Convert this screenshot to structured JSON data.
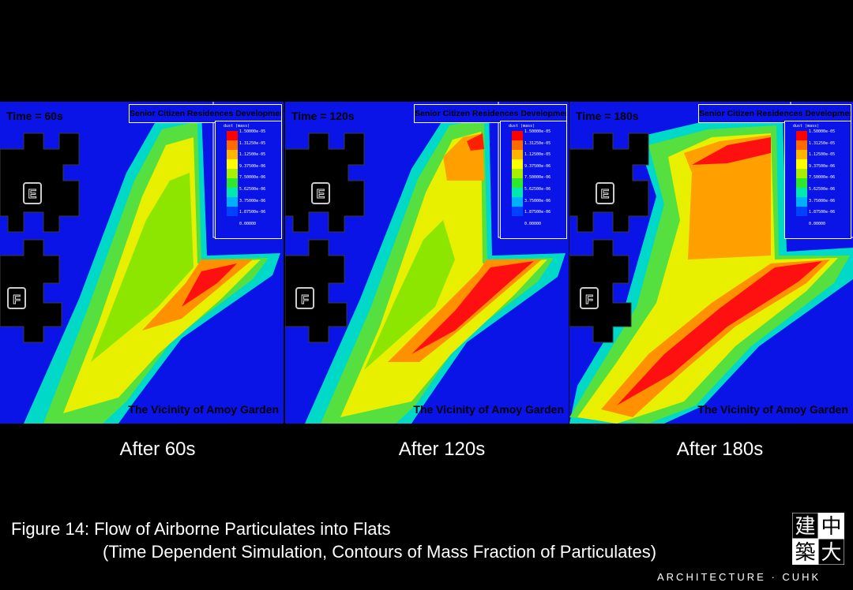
{
  "legend": {
    "title": "dust (mass)",
    "ticks": [
      "1.50000e-05",
      "1.31250e-05",
      "1.12500e-05",
      "9.37500e-06",
      "7.50000e-06",
      "5.62500e-06",
      "3.75000e-06",
      "1.87500e-06",
      "0.00000"
    ],
    "colors": [
      "#ff0000",
      "#ff6a00",
      "#ffb400",
      "#ffff00",
      "#a8f000",
      "#2ee82e",
      "#00e8b0",
      "#00b0ff",
      "#0040ff",
      "#0a14e6"
    ]
  },
  "panels": [
    {
      "time_label": "Time = 60s",
      "title": "Senior Citizen Residences Development",
      "vicinity": "The Vicinity of Amoy Garden",
      "caption": "After 60s",
      "block_e": "E",
      "block_f": "F"
    },
    {
      "time_label": "Time = 120s",
      "title": "Senior Citizen Residences Development",
      "vicinity": "The Vicinity of Amoy Garden",
      "caption": "After 120s",
      "block_e": "E",
      "block_f": "F"
    },
    {
      "time_label": "Time = 180s",
      "title": "Senior Citizen Residences Development",
      "vicinity": "The Vicinity of Amoy Garden",
      "caption": "After 180s",
      "block_e": "E",
      "block_f": "F"
    }
  ],
  "figure": {
    "line1": "Figure 14: Flow of Airborne Particulates into Flats",
    "line2": "(Time Dependent Simulation, Contours of Mass Fraction of Particulates)"
  },
  "logo": {
    "chars": [
      "建",
      "中",
      "築",
      "大"
    ],
    "caption": "ARCHITECTURE · CUHK"
  }
}
